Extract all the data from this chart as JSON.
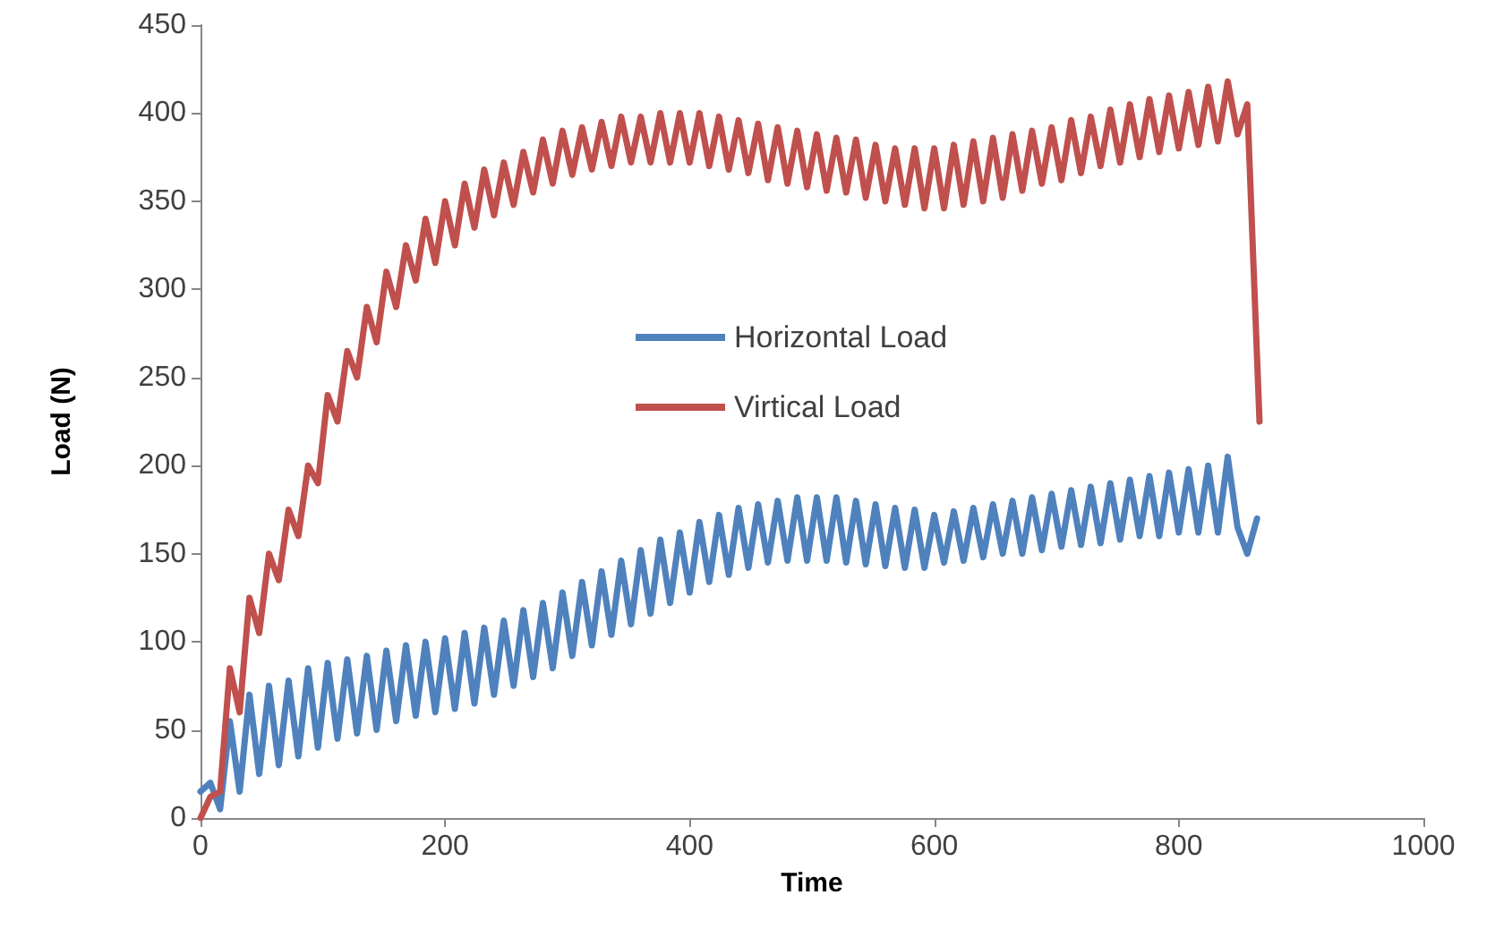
{
  "chart_data": {
    "type": "line",
    "xlabel": "Time",
    "ylabel": "Load (N)",
    "xlim": [
      0,
      1000
    ],
    "xticks": [
      0,
      200,
      400,
      600,
      800,
      1000
    ],
    "ylim": [
      0,
      450
    ],
    "yticks": [
      0,
      50,
      100,
      150,
      200,
      250,
      300,
      350,
      400,
      450
    ],
    "grid": false,
    "legend": "center",
    "marker": "none",
    "line_style": "solid",
    "series": [
      {
        "name": "Horizontal Load",
        "color": "#4f81bd",
        "x": [
          0,
          8,
          16,
          24,
          32,
          40,
          48,
          56,
          64,
          72,
          80,
          88,
          96,
          104,
          112,
          120,
          128,
          136,
          144,
          152,
          160,
          168,
          176,
          184,
          192,
          200,
          208,
          216,
          224,
          232,
          240,
          248,
          256,
          264,
          272,
          280,
          288,
          296,
          304,
          312,
          320,
          328,
          336,
          344,
          352,
          360,
          368,
          376,
          384,
          392,
          400,
          408,
          416,
          424,
          432,
          440,
          448,
          456,
          464,
          472,
          480,
          488,
          496,
          504,
          512,
          520,
          528,
          536,
          544,
          552,
          560,
          568,
          576,
          584,
          592,
          600,
          608,
          616,
          624,
          632,
          640,
          648,
          656,
          664,
          672,
          680,
          688,
          696,
          704,
          712,
          720,
          728,
          736,
          744,
          752,
          760,
          768,
          776,
          784,
          792,
          800,
          808,
          816,
          824,
          832,
          840,
          848,
          856,
          864
        ],
        "values": [
          15,
          20,
          5,
          55,
          15,
          70,
          25,
          75,
          30,
          78,
          35,
          85,
          40,
          88,
          45,
          90,
          48,
          92,
          50,
          95,
          55,
          98,
          58,
          100,
          60,
          102,
          62,
          105,
          65,
          108,
          70,
          112,
          75,
          118,
          80,
          122,
          85,
          128,
          92,
          134,
          98,
          140,
          104,
          146,
          110,
          152,
          116,
          158,
          122,
          162,
          128,
          168,
          134,
          172,
          138,
          176,
          142,
          178,
          145,
          180,
          146,
          182,
          146,
          182,
          146,
          182,
          145,
          180,
          144,
          178,
          143,
          176,
          142,
          175,
          142,
          172,
          145,
          174,
          146,
          176,
          148,
          178,
          150,
          180,
          150,
          182,
          152,
          184,
          154,
          186,
          155,
          188,
          156,
          190,
          158,
          192,
          160,
          194,
          160,
          196,
          162,
          198,
          162,
          200,
          162,
          205,
          165,
          150,
          170
        ]
      },
      {
        "name": "Virtical Load",
        "color": "#c0504d",
        "x": [
          0,
          8,
          16,
          24,
          32,
          40,
          48,
          56,
          64,
          72,
          80,
          88,
          96,
          104,
          112,
          120,
          128,
          136,
          144,
          152,
          160,
          168,
          176,
          184,
          192,
          200,
          208,
          216,
          224,
          232,
          240,
          248,
          256,
          264,
          272,
          280,
          288,
          296,
          304,
          312,
          320,
          328,
          336,
          344,
          352,
          360,
          368,
          376,
          384,
          392,
          400,
          408,
          416,
          424,
          432,
          440,
          448,
          456,
          464,
          472,
          480,
          488,
          496,
          504,
          512,
          520,
          528,
          536,
          544,
          552,
          560,
          568,
          576,
          584,
          592,
          600,
          608,
          616,
          624,
          632,
          640,
          648,
          656,
          664,
          672,
          680,
          688,
          696,
          704,
          712,
          720,
          728,
          736,
          744,
          752,
          760,
          768,
          776,
          784,
          792,
          800,
          808,
          816,
          824,
          832,
          840,
          848,
          856,
          866
        ],
        "values": [
          0,
          12,
          15,
          85,
          60,
          125,
          105,
          150,
          135,
          175,
          160,
          200,
          190,
          240,
          225,
          265,
          250,
          290,
          270,
          310,
          290,
          325,
          305,
          340,
          315,
          350,
          325,
          360,
          335,
          368,
          342,
          372,
          348,
          378,
          355,
          385,
          360,
          390,
          365,
          392,
          368,
          395,
          370,
          398,
          372,
          398,
          372,
          400,
          372,
          400,
          372,
          400,
          370,
          398,
          368,
          396,
          366,
          394,
          362,
          392,
          360,
          390,
          358,
          388,
          356,
          386,
          355,
          385,
          352,
          382,
          350,
          380,
          348,
          380,
          346,
          380,
          346,
          382,
          348,
          384,
          350,
          386,
          352,
          388,
          356,
          390,
          360,
          392,
          362,
          396,
          366,
          398,
          370,
          402,
          372,
          405,
          375,
          408,
          378,
          410,
          380,
          412,
          382,
          415,
          384,
          418,
          388,
          405,
          225
        ]
      }
    ]
  }
}
